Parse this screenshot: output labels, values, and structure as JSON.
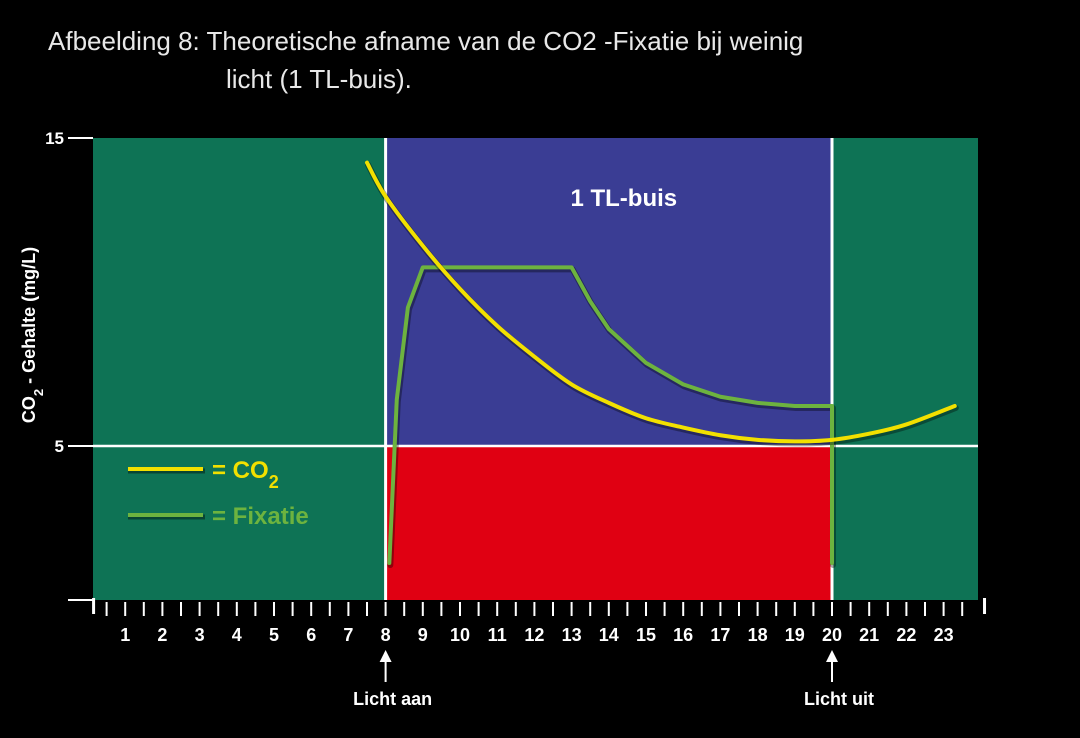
{
  "caption": {
    "line1": "Afbeelding 8: Theoretische afname van de CO2  -Fixatie bij weinig",
    "line2": "licht (1 TL-buis)."
  },
  "chart_data": {
    "type": "line",
    "title": "",
    "ylabel": "CO",
    "ylabel_sub": "2",
    "ylabel_rest": " - Gehalte (mg/L)",
    "xlim": [
      0,
      24
    ],
    "ylim": [
      0,
      15
    ],
    "x_ticks": [
      1,
      2,
      3,
      4,
      5,
      6,
      7,
      8,
      9,
      10,
      11,
      12,
      13,
      14,
      15,
      16,
      17,
      18,
      19,
      20,
      21,
      22,
      23
    ],
    "y_tick_labels": [
      {
        "value": 15,
        "label": "15"
      },
      {
        "value": 5,
        "label": "5"
      }
    ],
    "reference_line_y": 5,
    "light_period": {
      "start": 8,
      "end": 20,
      "label": "1 TL-buis"
    },
    "annotations": [
      {
        "x": 8,
        "label": "Licht aan"
      },
      {
        "x": 20,
        "label": "Licht uit"
      }
    ],
    "legend": [
      {
        "text": "= CO",
        "sub": "2",
        "color": "#f2e000"
      },
      {
        "text": "= Fixatie",
        "sub": "",
        "color": "#6db33f"
      }
    ],
    "series": [
      {
        "name": "CO2",
        "color": "#f2e000",
        "x": [
          7.5,
          8,
          9,
          10,
          11,
          12,
          13,
          14,
          15,
          16,
          17,
          18,
          19,
          20,
          21,
          22,
          23.3
        ],
        "y": [
          14.2,
          13.1,
          11.5,
          10.1,
          8.9,
          7.9,
          7.0,
          6.4,
          5.9,
          5.6,
          5.35,
          5.2,
          5.15,
          5.2,
          5.4,
          5.7,
          6.3
        ]
      },
      {
        "name": "Fixatie",
        "color": "#6db33f",
        "x": [
          8.1,
          8.3,
          8.6,
          9,
          10,
          11,
          12,
          13,
          13.5,
          14,
          15,
          16,
          17,
          18,
          19,
          20,
          20,
          20
        ],
        "y": [
          1.2,
          6.5,
          9.5,
          10.8,
          10.8,
          10.8,
          10.8,
          10.8,
          9.7,
          8.8,
          7.7,
          7.0,
          6.6,
          6.4,
          6.3,
          6.3,
          5.6,
          1.2
        ]
      }
    ],
    "colors": {
      "background": "#000000",
      "dark_area": "#0e7355",
      "light_upper": "#3a3d94",
      "light_lower": "#e00012",
      "grid_lines": "#ffffff",
      "text": "#ffffff"
    }
  }
}
